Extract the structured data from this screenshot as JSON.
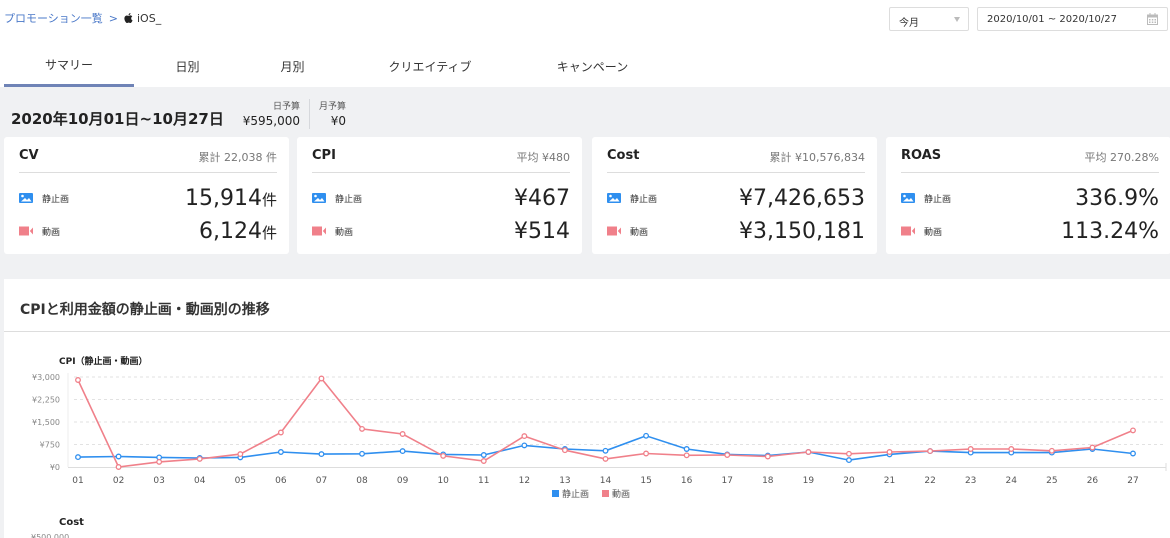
{
  "breadcrumb": {
    "parent": "プロモーション一覧",
    "separator": ">",
    "platform_icon": "apple-icon",
    "current": "iOS_"
  },
  "filters": {
    "period": "今月",
    "date_range": "2020/10/01 ~ 2020/10/27"
  },
  "tabs": [
    {
      "label": "サマリー",
      "active": true
    },
    {
      "label": "日別",
      "active": false
    },
    {
      "label": "月別",
      "active": false
    },
    {
      "label": "クリエイティブ",
      "active": false
    },
    {
      "label": "キャンペーン",
      "active": false
    }
  ],
  "summary": {
    "period_title": "2020年10月01日~10月27日",
    "daily_budget_label": "日予算",
    "daily_budget": "¥595,000",
    "monthly_budget_label": "月予算",
    "monthly_budget": "¥0"
  },
  "row_labels": {
    "static": "静止画",
    "video": "動画"
  },
  "cards": [
    {
      "title": "CV",
      "total": "累計 22,038 件",
      "static": "15,914",
      "static_unit": "件",
      "video": "6,124",
      "video_unit": "件"
    },
    {
      "title": "CPI",
      "total": "平均 ¥480",
      "static": "¥467",
      "static_unit": "",
      "video": "¥514",
      "video_unit": ""
    },
    {
      "title": "Cost",
      "total": "累計 ¥10,576,834",
      "static": "¥7,426,653",
      "static_unit": "",
      "video": "¥3,150,181",
      "video_unit": ""
    },
    {
      "title": "ROAS",
      "total": "平均 270.28%",
      "static": "336.9%",
      "static_unit": "",
      "video": "113.24%",
      "video_unit": ""
    }
  ],
  "colors": {
    "static": "#2f8fef",
    "video": "#f0808a",
    "tab_active": "#6f83b6",
    "link": "#4a78c8"
  },
  "chart_section": {
    "title": "CPIと利用金額の静止画・動画別の推移",
    "next_chart_title": "Cost",
    "next_chart_first_tick": "¥500,000"
  },
  "chart_data": {
    "type": "line",
    "title": "CPI（静止画・動画）",
    "xlabel": "",
    "ylabel": "",
    "ylim": [
      0,
      3000
    ],
    "yticks": [
      "¥0",
      "¥750",
      "¥1,500",
      "¥2,250",
      "¥3,000"
    ],
    "grid": true,
    "legend_position": "bottom",
    "categories": [
      "01",
      "02",
      "03",
      "04",
      "05",
      "06",
      "07",
      "08",
      "09",
      "10",
      "11",
      "12",
      "13",
      "14",
      "15",
      "16",
      "17",
      "18",
      "19",
      "20",
      "21",
      "22",
      "23",
      "24",
      "25",
      "26",
      "27"
    ],
    "series": [
      {
        "name": "静止画",
        "color": "#2f8fef",
        "values": [
          330,
          350,
          320,
          300,
          320,
          500,
          430,
          440,
          530,
          420,
          400,
          720,
          600,
          540,
          1040,
          600,
          420,
          380,
          500,
          230,
          420,
          530,
          480,
          480,
          480,
          600,
          450
        ]
      },
      {
        "name": "動画",
        "color": "#f0808a",
        "values": [
          2900,
          0,
          170,
          270,
          430,
          1150,
          2950,
          1270,
          1100,
          370,
          200,
          1030,
          560,
          270,
          450,
          390,
          400,
          350,
          500,
          440,
          500,
          530,
          600,
          600,
          540,
          650,
          1220
        ]
      }
    ]
  }
}
